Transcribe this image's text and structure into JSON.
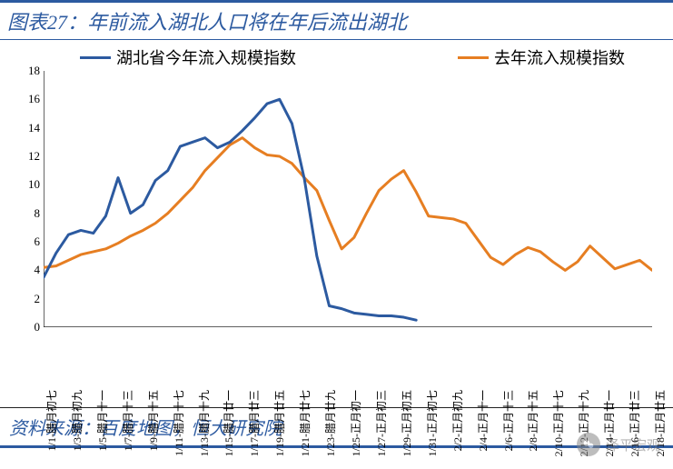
{
  "title": "图表27：年前流入湖北人口将在年后流出湖北",
  "source": "资料来源：百度地图，恒大研究院",
  "watermark": "泽平宏观",
  "legend": {
    "series_a": "湖北省今年流入规模指数",
    "series_b": "去年流入规模指数"
  },
  "chart": {
    "type": "line",
    "y_axis": {
      "min": 0,
      "max": 18,
      "step": 2,
      "tick_color": "#000000",
      "tick_fontsize": 13
    },
    "axis_color": "#000000",
    "background_color": "#ffffff",
    "x_categories": [
      "1/1-腊月初七",
      "1/3-腊月初九",
      "1/5-腊月十一",
      "1/7-腊月十三",
      "1/9-腊月十五",
      "1/11-腊月十七",
      "1/13-腊月十九",
      "1/15-腊月廿一",
      "1/17-腊月廿三",
      "1/19-腊月廿五",
      "1/21-腊月廿七",
      "1/23-腊月廿九",
      "1/25-正月初一",
      "1/27-正月初三",
      "1/29-正月初五",
      "1/31-正月初七",
      "2/2-正月初九",
      "2/4-正月十一",
      "2/6-正月十三",
      "2/8-正月十五",
      "2/10-正月十七",
      "2/12-正月十九",
      "2/14-正月廿一",
      "2/16-正月廿三",
      "2/18-正月廿五"
    ],
    "series": [
      {
        "name": "series_a",
        "color": "#2c5aa0",
        "line_width": 3,
        "data": [
          3.5,
          5.2,
          6.5,
          6.8,
          6.6,
          7.8,
          10.5,
          8.0,
          8.6,
          10.3,
          11.0,
          12.7,
          13.0,
          13.3,
          12.6,
          13.0,
          13.8,
          14.7,
          15.7,
          16.0,
          14.3,
          10.4,
          5.0,
          1.5,
          1.3,
          1.0,
          0.9,
          0.8,
          0.8,
          0.7,
          0.5
        ]
      },
      {
        "name": "series_b",
        "color": "#e67e22",
        "line_width": 3,
        "data": [
          4.2,
          4.3,
          4.7,
          5.1,
          5.3,
          5.5,
          5.9,
          6.4,
          6.8,
          7.3,
          8.0,
          8.9,
          9.8,
          11.0,
          11.9,
          12.8,
          13.3,
          12.6,
          12.1,
          12.0,
          11.5,
          10.5,
          9.6,
          7.5,
          5.5,
          6.3,
          8.0,
          9.6,
          10.4,
          11.0,
          9.5,
          7.8,
          7.7,
          7.6,
          7.3,
          6.1,
          4.9,
          4.4,
          5.1,
          5.6,
          5.3,
          4.6,
          4.0,
          4.6,
          5.7,
          4.9,
          4.1,
          4.4,
          4.7,
          4.0
        ]
      }
    ]
  }
}
